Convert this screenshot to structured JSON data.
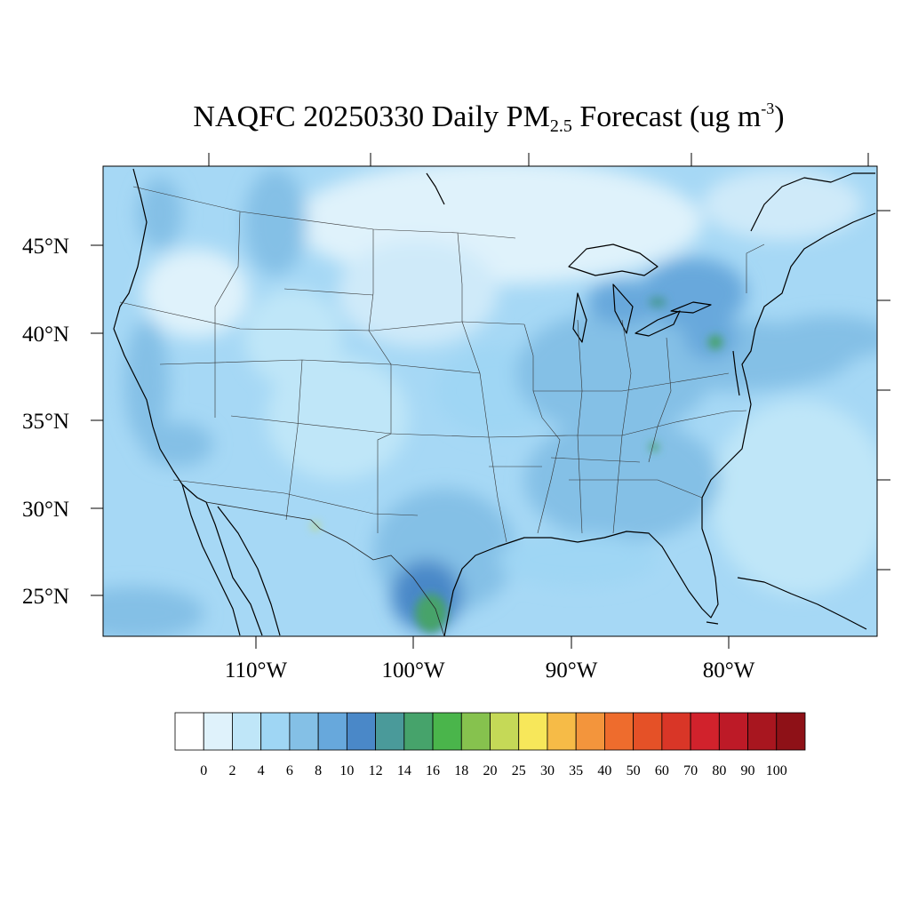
{
  "title": {
    "pre": "NAQFC 20250330 Daily PM",
    "sub": "2.5",
    "mid": " Forecast (ug m",
    "sup": "-3",
    "post": ")"
  },
  "latitude_labels": [
    "45°N",
    "40°N",
    "35°N",
    "30°N",
    "25°N"
  ],
  "longitude_labels": [
    "110°W",
    "100°W",
    "90°W",
    "80°W"
  ],
  "colorbar": {
    "colors": [
      "#ffffff",
      "#dff2fb",
      "#bfe6f8",
      "#9fd6f4",
      "#84c0e6",
      "#67a8dc",
      "#4a88c8",
      "#4a9a9a",
      "#46a36b",
      "#4ab54b",
      "#86c24e",
      "#c5d957",
      "#f7e75a",
      "#f6bb47",
      "#f3953c",
      "#ee6c2d",
      "#e55127",
      "#d93627",
      "#d1222c",
      "#bd1a27",
      "#a8161f",
      "#8e1117"
    ],
    "labels": [
      "0",
      "2",
      "4",
      "6",
      "8",
      "10",
      "12",
      "14",
      "16",
      "18",
      "20",
      "25",
      "30",
      "35",
      "40",
      "50",
      "60",
      "70",
      "80",
      "90",
      "100"
    ]
  },
  "map": {
    "background_color": "#a6d8f5",
    "coastline_color": "#000000",
    "hotspots": [
      {
        "name": "Texas / Mexico plume",
        "level": "14-20"
      },
      {
        "name": "Great Lakes / Ohio",
        "level": "8-12"
      },
      {
        "name": "Mid-Atlantic",
        "level": "8-14"
      },
      {
        "name": "Southeast",
        "level": "6-12"
      }
    ]
  }
}
